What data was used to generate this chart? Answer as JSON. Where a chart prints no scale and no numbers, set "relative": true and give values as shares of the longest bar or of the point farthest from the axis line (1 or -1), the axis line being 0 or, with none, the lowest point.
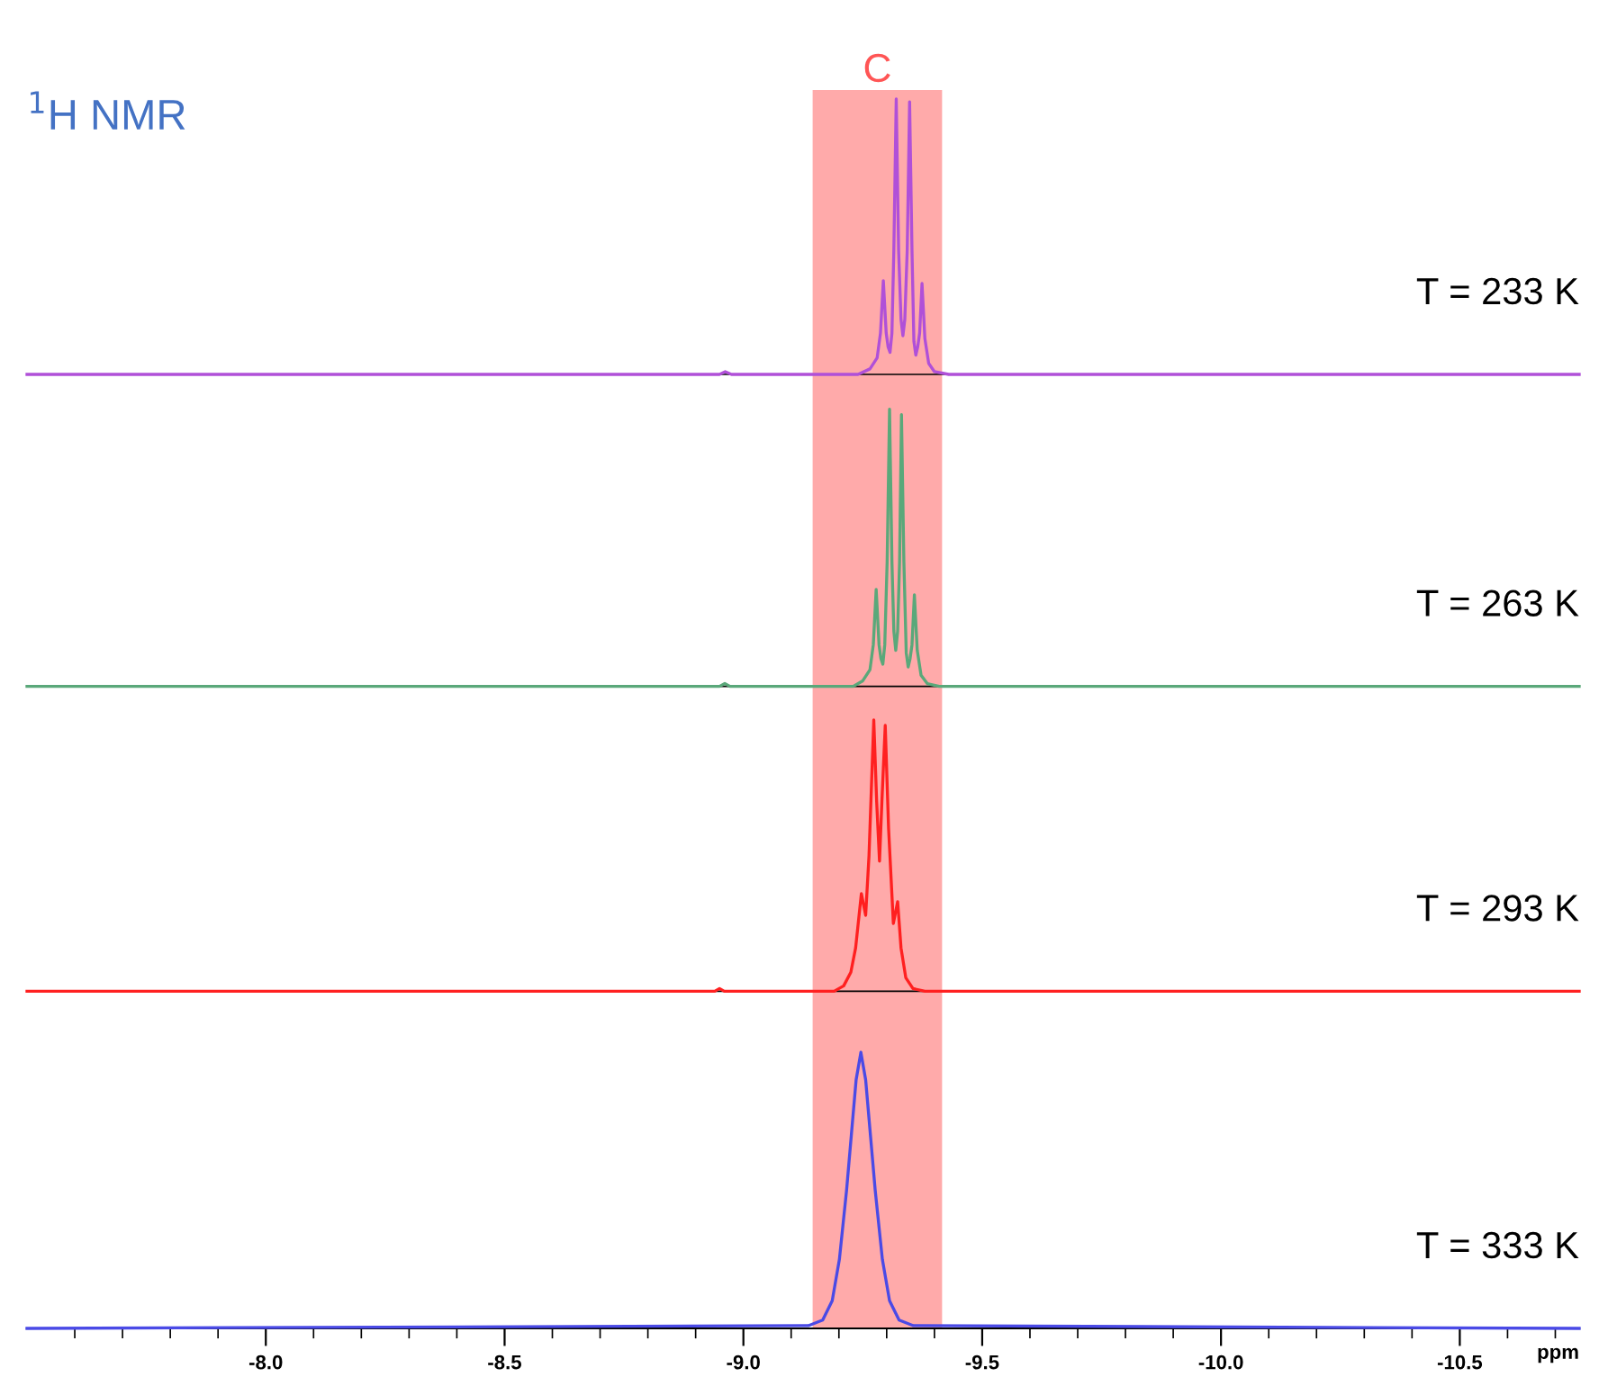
{
  "chart_data": [
    {
      "type": "line",
      "title": "$^{1}$H NMR",
      "relative": true,
      "xlim": [
        -7.5,
        -10.75
      ],
      "tick_labels": false,
      "series": [
        {
          "name": "T = 233 K",
          "color": "#b050d8",
          "x": [
            -7.5,
            -8.95,
            -8.962,
            -8.975,
            -9.24,
            -9.265,
            -9.28,
            -9.287,
            -9.293,
            -9.299,
            -9.303,
            -9.307,
            -9.311,
            -9.315,
            -9.32,
            -9.325,
            -9.33,
            -9.334,
            -9.338,
            -9.343,
            -9.348,
            -9.353,
            -9.357,
            -9.361,
            -9.365,
            -9.369,
            -9.374,
            -9.38,
            -9.388,
            -9.4,
            -9.43,
            -10.75
          ],
          "values": [
            0,
            0,
            0.01,
            0,
            0,
            0.02,
            0.06,
            0.15,
            0.34,
            0.15,
            0.1,
            0.08,
            0.15,
            0.45,
            1.0,
            0.45,
            0.2,
            0.14,
            0.2,
            0.45,
            0.99,
            0.45,
            0.12,
            0.07,
            0.1,
            0.15,
            0.33,
            0.13,
            0.04,
            0.01,
            0,
            0
          ]
        }
      ]
    },
    {
      "type": "line",
      "relative": true,
      "xlim": [
        -7.5,
        -10.75
      ],
      "tick_labels": false,
      "series": [
        {
          "name": "T = 263 K",
          "color": "#5aa87a",
          "x": [
            -7.5,
            -8.95,
            -8.961,
            -8.972,
            -9.23,
            -9.25,
            -9.265,
            -9.272,
            -9.278,
            -9.284,
            -9.288,
            -9.292,
            -9.296,
            -9.301,
            -9.306,
            -9.311,
            -9.315,
            -9.319,
            -9.323,
            -9.327,
            -9.331,
            -9.336,
            -9.341,
            -9.345,
            -9.349,
            -9.353,
            -9.358,
            -9.364,
            -9.372,
            -9.385,
            -9.41,
            -10.75
          ],
          "values": [
            0,
            0,
            0.01,
            0,
            0,
            0.02,
            0.06,
            0.15,
            0.35,
            0.15,
            0.1,
            0.08,
            0.15,
            0.45,
            1.0,
            0.45,
            0.2,
            0.13,
            0.2,
            0.45,
            0.98,
            0.45,
            0.12,
            0.07,
            0.1,
            0.15,
            0.33,
            0.13,
            0.04,
            0.01,
            0,
            0
          ]
        }
      ]
    },
    {
      "type": "line",
      "relative": true,
      "xlim": [
        -7.5,
        -10.75
      ],
      "tick_labels": false,
      "series": [
        {
          "name": "T = 293 K",
          "color": "#ff2020",
          "x": [
            -7.5,
            -8.94,
            -8.95,
            -8.96,
            -9.19,
            -9.21,
            -9.225,
            -9.235,
            -9.247,
            -9.256,
            -9.263,
            -9.273,
            -9.279,
            -9.285,
            -9.29,
            -9.297,
            -9.304,
            -9.314,
            -9.323,
            -9.33,
            -9.34,
            -9.355,
            -9.38,
            -10.75
          ],
          "values": [
            0,
            0,
            0.01,
            0,
            0,
            0.02,
            0.07,
            0.16,
            0.36,
            0.28,
            0.5,
            1.0,
            0.7,
            0.48,
            0.7,
            0.98,
            0.6,
            0.25,
            0.33,
            0.16,
            0.05,
            0.01,
            0,
            0
          ]
        }
      ]
    },
    {
      "type": "line",
      "relative": true,
      "xlim": [
        -7.5,
        -10.75
      ],
      "tick_labels": "x",
      "xlabel": "ppm",
      "xticks": [
        {
          "value": -8.0,
          "label": "-8.0"
        },
        {
          "value": -8.5,
          "label": "-8.5"
        },
        {
          "value": -9.0,
          "label": "-9.0"
        },
        {
          "value": -9.5,
          "label": "-9.5"
        },
        {
          "value": -10.0,
          "label": "-10.0"
        },
        {
          "value": -10.5,
          "label": "-10.5"
        },
        {
          "value": -7.6,
          "label": null
        },
        {
          "value": -7.7,
          "label": null
        },
        {
          "value": -7.8,
          "label": null
        },
        {
          "value": -7.9,
          "label": null
        },
        {
          "value": -8.1,
          "label": null
        },
        {
          "value": -8.2,
          "label": null
        },
        {
          "value": -8.3,
          "label": null
        },
        {
          "value": -8.4,
          "label": null
        },
        {
          "value": -8.6,
          "label": null
        },
        {
          "value": -8.7,
          "label": null
        },
        {
          "value": -8.8,
          "label": null
        },
        {
          "value": -8.9,
          "label": null
        },
        {
          "value": -9.1,
          "label": null
        },
        {
          "value": -9.2,
          "label": null
        },
        {
          "value": -9.3,
          "label": null
        },
        {
          "value": -9.4,
          "label": null
        },
        {
          "value": -9.6,
          "label": null
        },
        {
          "value": -9.7,
          "label": null
        },
        {
          "value": -9.8,
          "label": null
        },
        {
          "value": -9.9,
          "label": null
        },
        {
          "value": -10.1,
          "label": null
        },
        {
          "value": -10.2,
          "label": null
        },
        {
          "value": -10.3,
          "label": null
        },
        {
          "value": -10.4,
          "label": null
        },
        {
          "value": -10.6,
          "label": null
        },
        {
          "value": -10.7,
          "label": null
        }
      ],
      "bands": [
        {
          "axis": "x",
          "from": -9.145,
          "to": -9.416,
          "label": "C",
          "color": "#ff5555"
        }
      ],
      "series": [
        {
          "name": "T = 333 K",
          "color": "#4a4ae6",
          "x": [
            -7.5,
            -9.136,
            -9.166,
            -9.186,
            -9.201,
            -9.216,
            -9.226,
            -9.236,
            -9.246,
            -9.256,
            -9.266,
            -9.276,
            -9.291,
            -9.306,
            -9.326,
            -9.356,
            -10.75
          ],
          "values": [
            0,
            0.01,
            0.03,
            0.1,
            0.25,
            0.5,
            0.7,
            0.9,
            1,
            0.9,
            0.7,
            0.5,
            0.25,
            0.1,
            0.03,
            0.01,
            0
          ]
        }
      ]
    }
  ]
}
